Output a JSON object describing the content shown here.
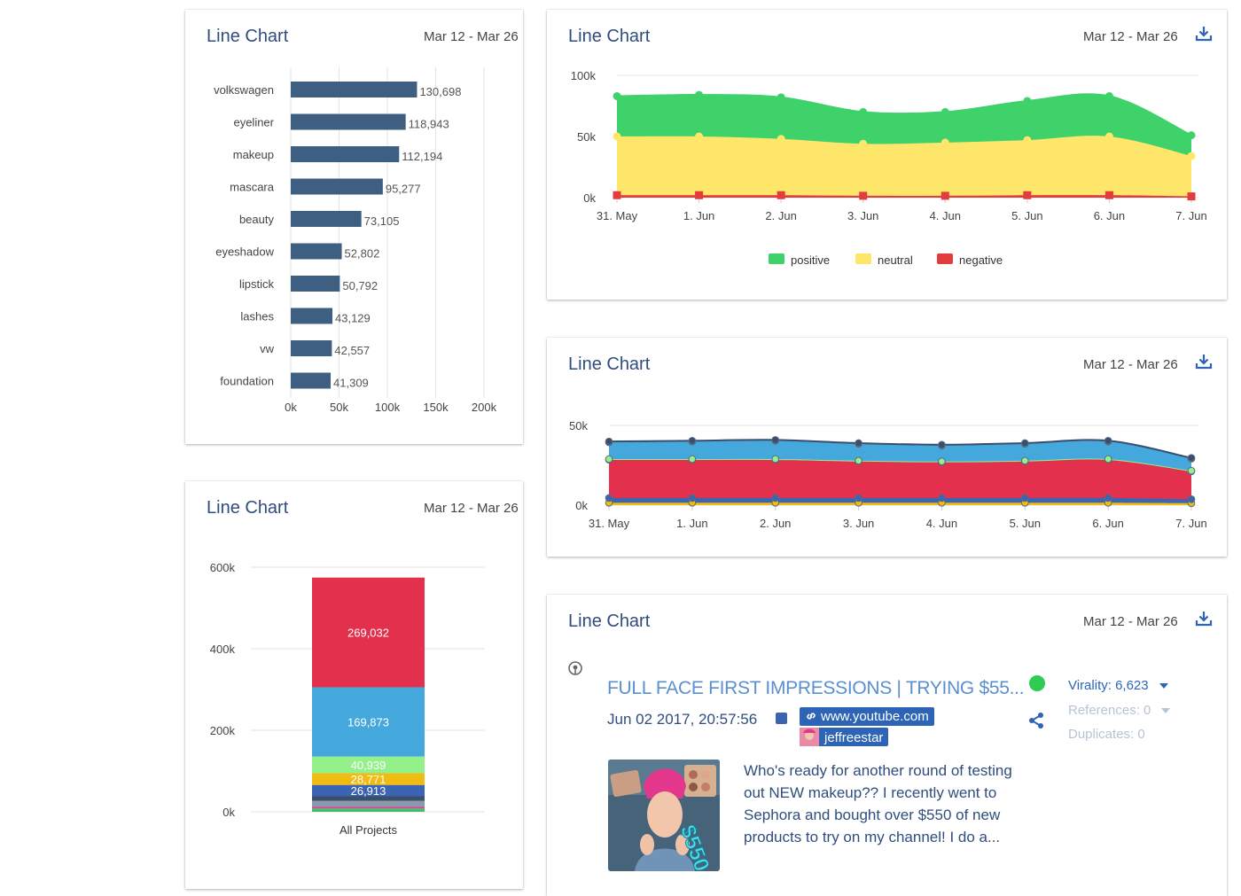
{
  "cards": {
    "bar": {
      "title": "Line Chart",
      "date": "Mar 12 - Mar 26"
    },
    "area1": {
      "title": "Line Chart",
      "date": "Mar 12 - Mar 26"
    },
    "stacked": {
      "title": "Line Chart",
      "date": "Mar 12 - Mar 26"
    },
    "area2": {
      "title": "Line Chart",
      "date": "Mar 12 - Mar 26"
    },
    "post": {
      "title": "Line Chart",
      "date": "Mar 12 - Mar 26"
    }
  },
  "chart_data": [
    {
      "type": "bar",
      "orientation": "horizontal",
      "categories": [
        "volkswagen",
        "eyeliner",
        "makeup",
        "mascara",
        "beauty",
        "eyeshadow",
        "lipstick",
        "lashes",
        "vw",
        "foundation"
      ],
      "values": [
        130698,
        118943,
        112194,
        95277,
        73105,
        52802,
        50792,
        43129,
        42557,
        41309
      ],
      "data_labels": [
        "130,698",
        "118,943",
        "112,194",
        "95,277",
        "73,105",
        "52,802",
        "50,792",
        "43,129",
        "42,557",
        "41,309"
      ],
      "xlim": [
        0,
        200000
      ],
      "x_ticks": [
        "0k",
        "50k",
        "100k",
        "150k",
        "200k"
      ],
      "bar_color": "#3f5f82",
      "grid": true
    },
    {
      "type": "area",
      "stacking": "normal",
      "categories": [
        "31. May",
        "1. Jun",
        "2. Jun",
        "3. Jun",
        "4. Jun",
        "5. Jun",
        "6. Jun",
        "7. Jun"
      ],
      "y_ticks": [
        "0k",
        "50k",
        "100k"
      ],
      "ylim": [
        0,
        100000
      ],
      "series": [
        {
          "name": "negative",
          "color": "#e23c3c",
          "values": [
            2000,
            2000,
            2000,
            1500,
            1500,
            2000,
            2000,
            1000
          ]
        },
        {
          "name": "neutral",
          "color": "#fde66a",
          "values": [
            48000,
            48000,
            46000,
            42500,
            43500,
            45000,
            48000,
            33000
          ]
        },
        {
          "name": "positive",
          "color": "#3fd26a",
          "values": [
            33000,
            34000,
            34000,
            26000,
            25000,
            32000,
            33000,
            17000
          ]
        }
      ],
      "legend": "bottom",
      "grid": true
    },
    {
      "type": "bar",
      "stacking": "normal",
      "categories": [
        "All Projects"
      ],
      "y_ticks": [
        "0k",
        "200k",
        "400k",
        "600k"
      ],
      "ylim": [
        0,
        600000
      ],
      "series": [
        {
          "color": "#3dc26b",
          "values": [
            8000
          ]
        },
        {
          "color": "#e0409a",
          "values": [
            4000
          ]
        },
        {
          "color": "#8a9aaa",
          "values": [
            15000
          ]
        },
        {
          "color": "#3a4e6e",
          "values": [
            12000
          ]
        },
        {
          "color": "#3c64b4",
          "values": [
            26913
          ],
          "label": "26,913"
        },
        {
          "color": "#f0bc12",
          "values": [
            28771
          ],
          "label": "28,771"
        },
        {
          "color": "#93f08a",
          "values": [
            40939
          ],
          "label": "40,939"
        },
        {
          "color": "#45a8dc",
          "values": [
            169873
          ],
          "label": "169,873"
        },
        {
          "color": "#e3304d",
          "values": [
            269032
          ],
          "label": "269,032"
        }
      ],
      "grid": true
    },
    {
      "type": "area",
      "stacking": "normal",
      "categories": [
        "31. May",
        "1. Jun",
        "2. Jun",
        "3. Jun",
        "4. Jun",
        "5. Jun",
        "6. Jun",
        "7. Jun"
      ],
      "y_ticks": [
        "0k",
        "50k"
      ],
      "ylim": [
        0,
        50000
      ],
      "series": [
        {
          "color": "#f0bc12",
          "values": [
            1500,
            1500,
            1500,
            1500,
            1500,
            1500,
            1500,
            1200
          ]
        },
        {
          "color": "#3c64b4",
          "values": [
            3000,
            3000,
            3000,
            3000,
            3000,
            3000,
            3000,
            2500
          ]
        },
        {
          "color": "#e3304d",
          "values": [
            24000,
            24000,
            24000,
            23000,
            22500,
            23000,
            24000,
            17500
          ]
        },
        {
          "color": "#93f08a",
          "values": [
            400,
            400,
            400,
            400,
            400,
            400,
            400,
            400
          ]
        },
        {
          "color": "#45a8dc",
          "values": [
            10500,
            11000,
            11500,
            10500,
            10000,
            10500,
            11000,
            7500
          ]
        },
        {
          "color": "#3a4e6e",
          "values": [
            500,
            500,
            500,
            500,
            500,
            500,
            500,
            500
          ]
        }
      ],
      "grid": true
    }
  ],
  "post": {
    "title": "FULL FACE FIRST IMPRESSIONS | TRYING $55...",
    "date": "Jun 02 2017, 20:57:56",
    "url": "www.youtube.com",
    "user": "jeffreestar",
    "virality": "Virality: 6,623",
    "references": "References: 0",
    "duplicates": "Duplicates: 0",
    "text": "Who's ready for another round of testing out NEW makeup?? I recently went to Sephora and bought over $550 of new products to try on my channel! I do a...",
    "thumb_text": "$550"
  },
  "colors": {
    "title": "#2f4d7d",
    "accent": "#2d64b5"
  }
}
